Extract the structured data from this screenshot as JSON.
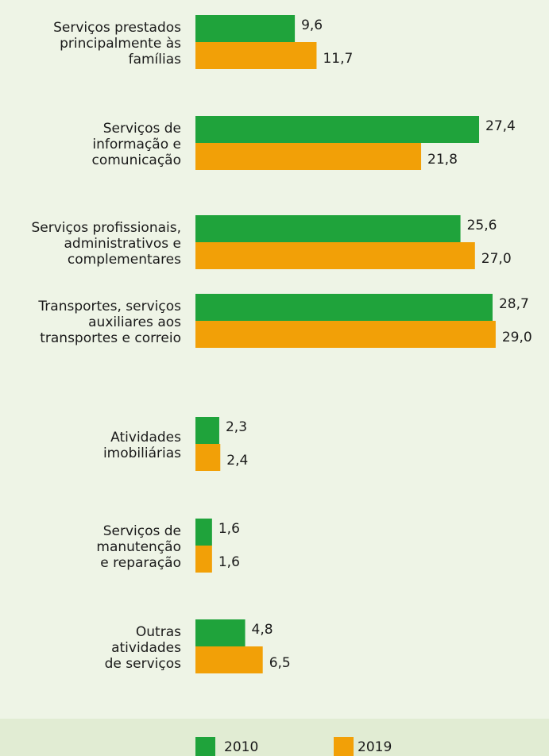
{
  "chart_data": {
    "type": "barh",
    "categories": [
      [
        "Serviços prestados",
        "principalmente às",
        "famílias"
      ],
      [
        "Serviços de",
        "informação e",
        "comunicação"
      ],
      [
        "Serviços profissionais,",
        "administrativos e",
        "complementares"
      ],
      [
        "Transportes, serviços",
        "auxiliares aos",
        "transportes e correio"
      ],
      [
        "Atividades",
        "imobiliárias"
      ],
      [
        "Serviços de",
        "manutenção",
        "e reparação"
      ],
      [
        "Outras",
        "atividades",
        "de serviços"
      ]
    ],
    "series": [
      {
        "name": "2010",
        "color": "#1fa33b",
        "values": [
          9.6,
          27.4,
          25.6,
          28.7,
          2.3,
          1.6,
          4.8
        ],
        "value_labels": [
          "9,6",
          "27,4",
          "25,6",
          "28,7",
          "2,3",
          "1,6",
          "4,8"
        ]
      },
      {
        "name": "2019",
        "color": "#f2a007",
        "values": [
          11.7,
          21.8,
          27.0,
          29.0,
          2.4,
          1.6,
          6.5
        ],
        "value_labels": [
          "11,7",
          "21,8",
          "27,0",
          "29,0",
          "2,4",
          "1,6",
          "6,5"
        ]
      }
    ]
  }
}
